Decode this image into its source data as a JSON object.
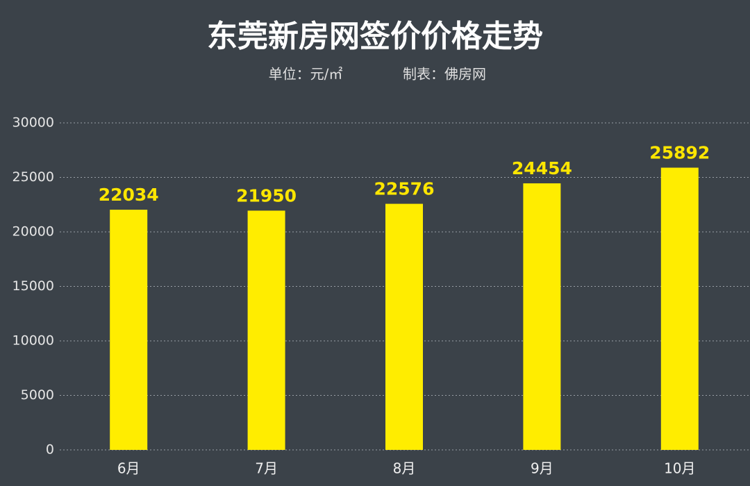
{
  "chart_data": {
    "type": "bar",
    "title": "东莞新房网签价价格走势",
    "unit": "单位：元/㎡",
    "source": "制表：佛房网",
    "categories": [
      "6月",
      "7月",
      "8月",
      "9月",
      "10月"
    ],
    "values": [
      22034,
      21950,
      22576,
      24454,
      25892
    ],
    "color": "#ffed00",
    "ylim": [
      0,
      30000
    ],
    "yticks": [
      0,
      5000,
      10000,
      15000,
      20000,
      25000,
      30000
    ],
    "grid": true
  }
}
